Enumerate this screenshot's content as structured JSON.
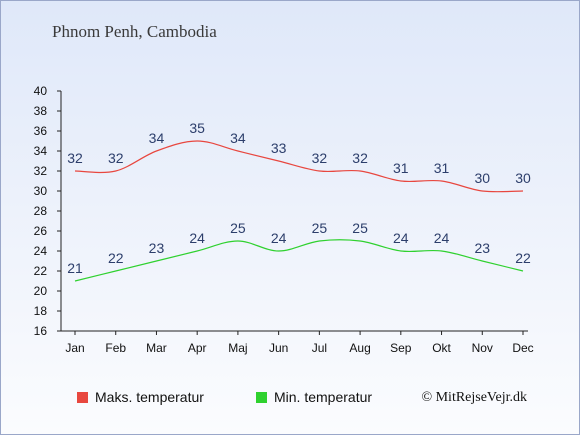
{
  "title": "Phnom Penh, Cambodia",
  "credit": "© MitRejseVejr.dk",
  "chart_data": {
    "type": "line",
    "categories": [
      "Jan",
      "Feb",
      "Mar",
      "Apr",
      "Maj",
      "Jun",
      "Jul",
      "Aug",
      "Sep",
      "Okt",
      "Nov",
      "Dec"
    ],
    "ylim": [
      16,
      40
    ],
    "yticks": [
      16,
      18,
      20,
      22,
      24,
      26,
      28,
      30,
      32,
      34,
      36,
      38,
      40
    ],
    "grid": false,
    "legend_position": "bottom-left",
    "series": [
      {
        "name": "Maks. temperatur",
        "color": "#e8473f",
        "values": [
          32,
          32,
          34,
          35,
          34,
          33,
          32,
          32,
          31,
          31,
          30,
          30
        ]
      },
      {
        "name": "Min. temperatur",
        "color": "#2fd12f",
        "values": [
          21,
          22,
          23,
          24,
          25,
          24,
          25,
          25,
          24,
          24,
          23,
          22
        ]
      }
    ]
  }
}
